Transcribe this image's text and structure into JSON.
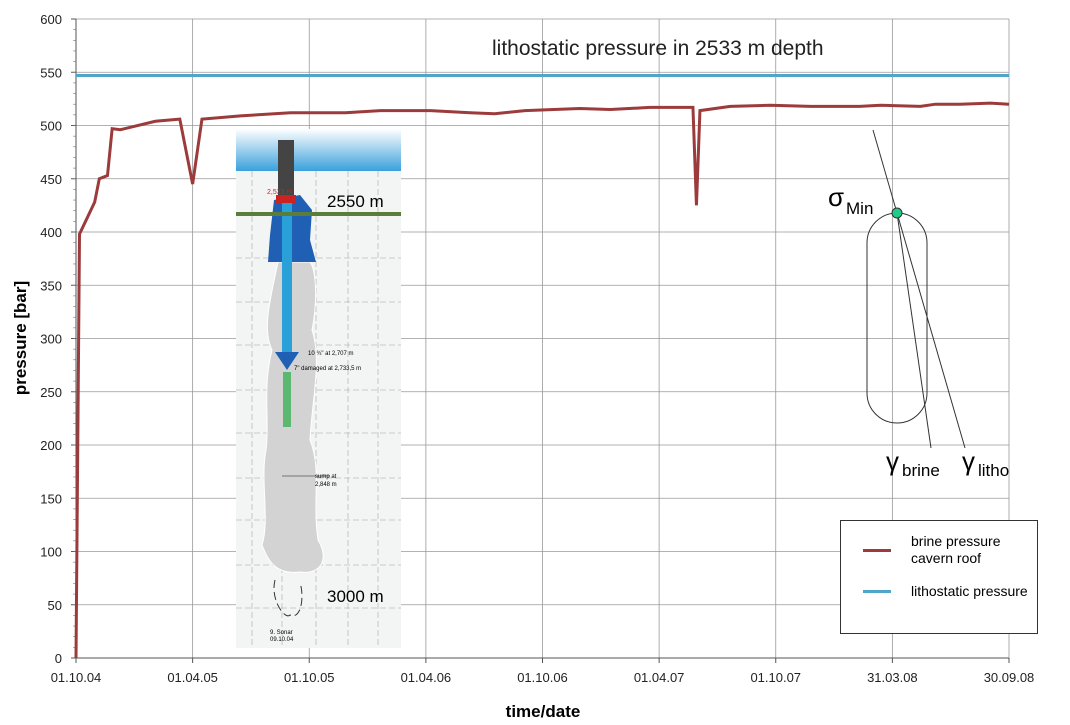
{
  "chart_data": {
    "type": "line",
    "annotations": [
      "lithostatic pressure in 2533 m depth"
    ],
    "xlabel": "time/date",
    "ylabel": "pressure [bar]",
    "xlim": [
      0,
      8
    ],
    "xticks": [
      {
        "value": 0,
        "label": "01.10.04"
      },
      {
        "value": 1,
        "label": "01.04.05"
      },
      {
        "value": 2,
        "label": "01.10.05"
      },
      {
        "value": 3,
        "label": "01.04.06"
      },
      {
        "value": 4,
        "label": "01.10.06"
      },
      {
        "value": 5,
        "label": "01.04.07"
      },
      {
        "value": 6,
        "label": "01.10.07"
      },
      {
        "value": 7,
        "label": "31.03.08"
      },
      {
        "value": 8,
        "label": "30.09.08"
      }
    ],
    "ylim": [
      0,
      600
    ],
    "yticks": [
      0,
      50,
      100,
      150,
      200,
      250,
      300,
      350,
      400,
      450,
      500,
      550,
      600
    ],
    "grid": true,
    "legend": "lower right",
    "series": [
      {
        "name": "brine pressure cavern roof",
        "color": "#9b3b3b",
        "x": [
          0,
          0.03,
          0.16,
          0.2,
          0.27,
          0.31,
          0.38,
          0.68,
          0.89,
          1.0,
          1.08,
          1.41,
          1.84,
          2.31,
          2.61,
          3.04,
          3.38,
          3.59,
          3.85,
          4.32,
          4.58,
          4.92,
          5.29,
          5.32,
          5.35,
          5.61,
          5.95,
          6.3,
          6.72,
          6.9,
          7.24,
          7.37,
          7.58,
          7.84,
          8
        ],
        "values": [
          0,
          398,
          428,
          450,
          453,
          497,
          496,
          504,
          506,
          445,
          506,
          509,
          512,
          512,
          514,
          514,
          512,
          511,
          514,
          516,
          515,
          517,
          517,
          425,
          514,
          518,
          519,
          518,
          518,
          519,
          518,
          520,
          520,
          521,
          520
        ]
      },
      {
        "name": "lithostatic pressure",
        "color": "#4fa6c8",
        "x": [
          0,
          8
        ],
        "values": [
          547,
          547
        ]
      }
    ],
    "inset": {
      "labels": [
        "2550 m",
        "3000 m",
        "2,533 m",
        "10 ¾\" at 2,707 m",
        "7\" damaged at 2,733,5 m",
        "sump at",
        "2,848 m",
        "9. Sonar",
        "09.10.04"
      ]
    },
    "stress_diagram": {
      "sigma": "σ",
      "sigma_sub": "Min",
      "gamma_brine": "γ",
      "gamma_brine_sub": "brine",
      "gamma_litho": "γ",
      "gamma_litho_sub": "litho"
    }
  }
}
